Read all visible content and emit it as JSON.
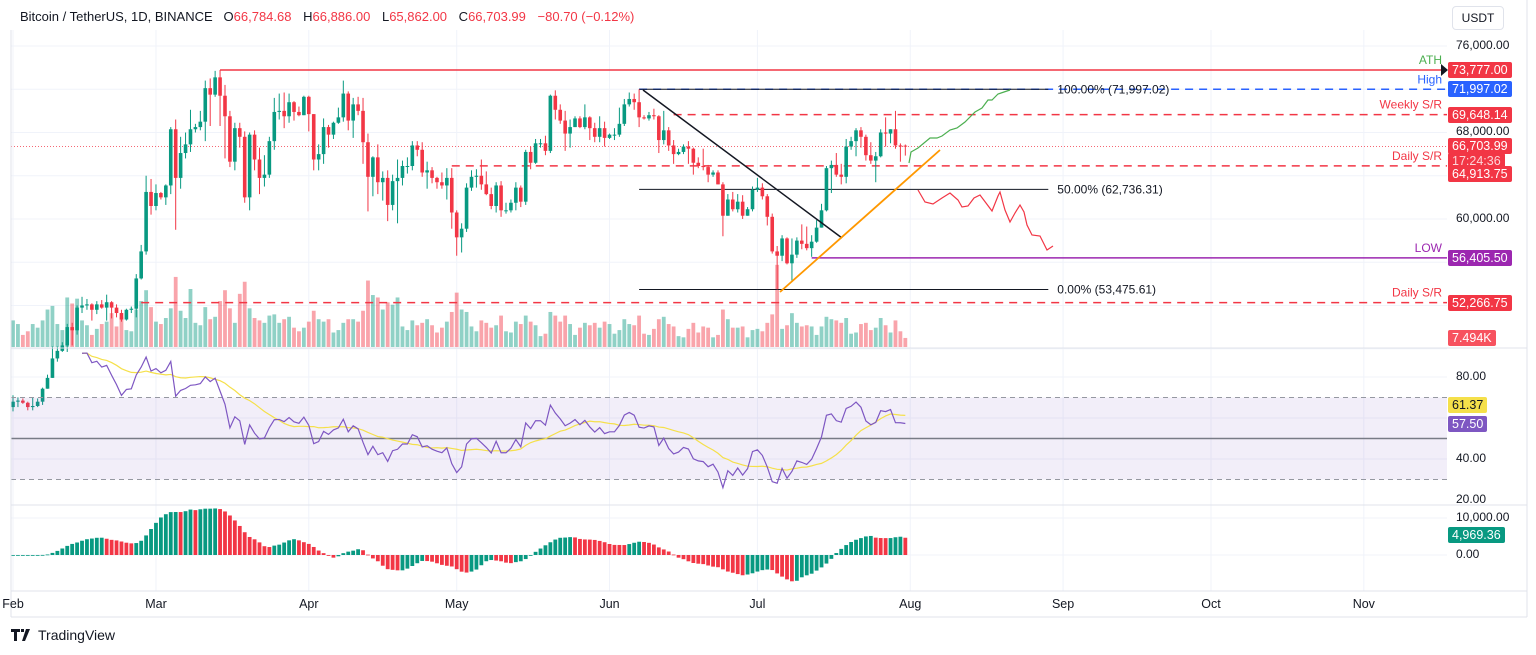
{
  "header": {
    "symbol": "Bitcoin / TetherUS, 1D, BINANCE",
    "o_label": "O",
    "o_value": "66,784.68",
    "h_label": "H",
    "h_value": "66,886.00",
    "l_label": "L",
    "l_value": "65,862.00",
    "c_label": "C",
    "c_value": "66,703.99",
    "change": "−80.70 (−0.12%)"
  },
  "currency_button": "USDT",
  "branding": "TradingView",
  "colors": {
    "up": "#089981",
    "down": "#f23645",
    "rsi": "#7e57c2",
    "rsi_ma": "#f5e04a",
    "fib": "#131722",
    "high": "#2962ff",
    "low": "#9c27b0",
    "ath_label": "#4caf50",
    "trend_down": "#131722",
    "trend_up": "#ff9800",
    "path_up": "#4caf50",
    "path_down": "#f23645"
  },
  "chart_data": {
    "type": "candlestick",
    "title": "Bitcoin / TetherUS, 1D, BINANCE",
    "x_ticks": [
      "Feb",
      "Mar",
      "Apr",
      "May",
      "Jun",
      "Jul",
      "Aug",
      "Sep",
      "Oct",
      "Nov"
    ],
    "y_ticks": [
      "76,000.00",
      "68,000.00",
      "60,000.00"
    ],
    "ylim": [
      44500,
      78000
    ],
    "grid": true,
    "start_date": "Feb 1",
    "ohlc": [
      [
        42600,
        43700,
        42200,
        43100
      ],
      [
        43100,
        43500,
        42600,
        43200
      ],
      [
        43200,
        43400,
        42900,
        43000
      ],
      [
        43000,
        43100,
        42300,
        42600
      ],
      [
        42600,
        43500,
        42300,
        42700
      ],
      [
        42700,
        43400,
        42600,
        43100
      ],
      [
        43100,
        44400,
        42800,
        44300
      ],
      [
        44300,
        45600,
        44300,
        45300
      ],
      [
        45300,
        48200,
        45300,
        47100
      ],
      [
        47100,
        48200,
        46800,
        47800
      ],
      [
        47800,
        48600,
        47700,
        48300
      ],
      [
        48300,
        50300,
        47700,
        50000
      ],
      [
        50000,
        50400,
        48300,
        49700
      ],
      [
        49700,
        52000,
        49300,
        51800
      ],
      [
        51800,
        52800,
        51300,
        52000
      ],
      [
        52000,
        52600,
        51600,
        52100
      ],
      [
        52100,
        52200,
        50600,
        51600
      ],
      [
        51600,
        52400,
        51200,
        52100
      ],
      [
        52100,
        52500,
        51700,
        51800
      ],
      [
        51800,
        53000,
        50600,
        52300
      ],
      [
        52300,
        52400,
        50800,
        51800
      ],
      [
        51800,
        52100,
        50900,
        51300
      ],
      [
        51300,
        51600,
        50500,
        50700
      ],
      [
        50700,
        51700,
        50600,
        51600
      ],
      [
        51600,
        51900,
        51300,
        51700
      ],
      [
        51700,
        54900,
        50900,
        54500
      ],
      [
        54500,
        57600,
        54400,
        57000
      ],
      [
        57000,
        64000,
        56700,
        62500
      ],
      [
        62500,
        63700,
        60400,
        61200
      ],
      [
        61200,
        63200,
        60800,
        62400
      ],
      [
        62400,
        62500,
        61800,
        62000
      ],
      [
        62000,
        63200,
        61300,
        63100
      ],
      [
        63100,
        68500,
        62300,
        68300
      ],
      [
        68300,
        69200,
        59000,
        63800
      ],
      [
        63800,
        67600,
        62800,
        66100
      ],
      [
        66100,
        68000,
        65600,
        66900
      ],
      [
        66900,
        70100,
        66200,
        68300
      ],
      [
        68300,
        68800,
        68000,
        68500
      ],
      [
        68500,
        70000,
        68200,
        69000
      ],
      [
        69000,
        72800,
        67200,
        72100
      ],
      [
        72100,
        73000,
        68600,
        71500
      ],
      [
        71500,
        73700,
        71300,
        73100
      ],
      [
        73100,
        73777,
        68600,
        71400
      ],
      [
        71400,
        72400,
        65600,
        69500
      ],
      [
        69500,
        70000,
        64800,
        65300
      ],
      [
        65300,
        68900,
        64500,
        68400
      ],
      [
        68400,
        68900,
        66600,
        67600
      ],
      [
        67600,
        68100,
        61500,
        62000
      ],
      [
        62000,
        68000,
        60800,
        67800
      ],
      [
        67800,
        68200,
        64500,
        65500
      ],
      [
        65500,
        66600,
        62300,
        63800
      ],
      [
        63800,
        65900,
        63000,
        64100
      ],
      [
        64100,
        67600,
        63800,
        67200
      ],
      [
        67200,
        71200,
        66400,
        69900
      ],
      [
        69900,
        71600,
        69200,
        70000
      ],
      [
        70000,
        71700,
        68400,
        69500
      ],
      [
        69500,
        71600,
        68900,
        70800
      ],
      [
        70800,
        70900,
        69100,
        69900
      ],
      [
        69900,
        70400,
        69500,
        69600
      ],
      [
        69600,
        71400,
        69600,
        71300
      ],
      [
        71300,
        71400,
        68100,
        69700
      ],
      [
        69700,
        69700,
        64500,
        65500
      ],
      [
        65500,
        66900,
        64500,
        66000
      ],
      [
        66000,
        69300,
        65100,
        68500
      ],
      [
        68500,
        68700,
        66600,
        67800
      ],
      [
        67800,
        69000,
        67400,
        68900
      ],
      [
        68900,
        70300,
        68800,
        69400
      ],
      [
        69400,
        72800,
        69000,
        71600
      ],
      [
        71600,
        71800,
        68200,
        69100
      ],
      [
        69100,
        71200,
        67500,
        70600
      ],
      [
        70600,
        71300,
        69600,
        70000
      ],
      [
        70000,
        71200,
        65100,
        67100
      ],
      [
        67100,
        67900,
        60700,
        63900
      ],
      [
        63900,
        65800,
        62100,
        65700
      ],
      [
        65700,
        66900,
        62300,
        63400
      ],
      [
        63400,
        64400,
        61700,
        63800
      ],
      [
        63800,
        64500,
        59800,
        61300
      ],
      [
        61300,
        64100,
        60800,
        63500
      ],
      [
        63500,
        65500,
        59600,
        63800
      ],
      [
        63800,
        65400,
        63100,
        64900
      ],
      [
        64900,
        65700,
        64200,
        64900
      ],
      [
        64900,
        67200,
        64500,
        66800
      ],
      [
        66800,
        67200,
        65800,
        66400
      ],
      [
        66400,
        67100,
        63900,
        64300
      ],
      [
        64300,
        65300,
        62800,
        64500
      ],
      [
        64500,
        64800,
        63300,
        63800
      ],
      [
        63800,
        63900,
        62800,
        63400
      ],
      [
        63400,
        64300,
        62800,
        63100
      ],
      [
        63100,
        64700,
        61800,
        63800
      ],
      [
        63800,
        64700,
        59100,
        60600
      ],
      [
        60600,
        60800,
        56600,
        58300
      ],
      [
        58300,
        59600,
        56900,
        59100
      ],
      [
        59100,
        63300,
        58800,
        62900
      ],
      [
        62900,
        64500,
        62600,
        63900
      ],
      [
        63900,
        64600,
        62900,
        64000
      ],
      [
        64000,
        65500,
        62700,
        63200
      ],
      [
        63200,
        64400,
        62200,
        62300
      ],
      [
        62300,
        62900,
        60900,
        61200
      ],
      [
        61200,
        63400,
        60600,
        63100
      ],
      [
        63100,
        63500,
        60200,
        60800
      ],
      [
        60800,
        61500,
        60500,
        60800
      ],
      [
        60800,
        61800,
        60600,
        61500
      ],
      [
        61500,
        63400,
        60800,
        62900
      ],
      [
        62900,
        63100,
        61100,
        61600
      ],
      [
        61600,
        66400,
        61300,
        66200
      ],
      [
        66200,
        66700,
        64600,
        65200
      ],
      [
        65200,
        67400,
        65100,
        67000
      ],
      [
        67000,
        67400,
        66600,
        67000
      ],
      [
        67000,
        67700,
        65900,
        66300
      ],
      [
        66300,
        71500,
        66100,
        71400
      ],
      [
        71400,
        71900,
        69200,
        70100
      ],
      [
        70100,
        70600,
        68800,
        69100
      ],
      [
        69100,
        70000,
        66300,
        67900
      ],
      [
        67900,
        69200,
        66600,
        68500
      ],
      [
        68500,
        69500,
        68500,
        69300
      ],
      [
        69300,
        69500,
        68400,
        68500
      ],
      [
        68500,
        70600,
        68300,
        69400
      ],
      [
        69400,
        69500,
        67300,
        68400
      ],
      [
        68400,
        68900,
        67100,
        67600
      ],
      [
        67600,
        69500,
        67100,
        68400
      ],
      [
        68400,
        69000,
        66700,
        67500
      ],
      [
        67500,
        67900,
        67400,
        67800
      ],
      [
        67800,
        68400,
        67300,
        67800
      ],
      [
        67800,
        70300,
        67600,
        68800
      ],
      [
        68800,
        71100,
        68600,
        70600
      ],
      [
        70600,
        71700,
        70400,
        71100
      ],
      [
        71100,
        71600,
        70100,
        70800
      ],
      [
        70800,
        71997,
        68500,
        69400
      ],
      [
        69400,
        69600,
        69200,
        69300
      ],
      [
        69300,
        69900,
        69100,
        69600
      ],
      [
        69600,
        70200,
        69200,
        69500
      ],
      [
        69500,
        69600,
        66100,
        67300
      ],
      [
        67300,
        70000,
        66900,
        68200
      ],
      [
        68200,
        68500,
        66300,
        66800
      ],
      [
        66800,
        67300,
        65100,
        66000
      ],
      [
        66000,
        66500,
        65900,
        66200
      ],
      [
        66200,
        66900,
        66000,
        66700
      ],
      [
        66700,
        67200,
        65100,
        66500
      ],
      [
        66500,
        66600,
        64100,
        65200
      ],
      [
        65200,
        65700,
        64700,
        64900
      ],
      [
        64900,
        66500,
        64500,
        64800
      ],
      [
        64800,
        65000,
        63400,
        64100
      ],
      [
        64100,
        64500,
        63900,
        64300
      ],
      [
        64300,
        64500,
        63200,
        63200
      ],
      [
        63200,
        63400,
        58400,
        60300
      ],
      [
        60300,
        62300,
        60300,
        61800
      ],
      [
        61800,
        62500,
        60700,
        60900
      ],
      [
        60900,
        62300,
        60600,
        61600
      ],
      [
        61600,
        62200,
        60000,
        60300
      ],
      [
        60300,
        61100,
        60300,
        60900
      ],
      [
        60900,
        63000,
        60700,
        62700
      ],
      [
        62700,
        63800,
        62500,
        62900
      ],
      [
        62900,
        63300,
        61800,
        62100
      ],
      [
        62100,
        62300,
        59400,
        60200
      ],
      [
        60200,
        60500,
        56800,
        57000
      ],
      [
        57000,
        57500,
        53476,
        56600
      ],
      [
        56600,
        58500,
        56100,
        58200
      ],
      [
        58200,
        58300,
        55800,
        55900
      ],
      [
        55900,
        58200,
        54300,
        56700
      ],
      [
        56700,
        58300,
        56400,
        58000
      ],
      [
        58000,
        59500,
        57200,
        57700
      ],
      [
        57700,
        59300,
        57100,
        57300
      ],
      [
        57300,
        58500,
        56500,
        57900
      ],
      [
        57900,
        59900,
        57800,
        59200
      ],
      [
        59200,
        61400,
        59200,
        60800
      ],
      [
        60800,
        64900,
        60700,
        64700
      ],
      [
        64700,
        65400,
        62400,
        65000
      ],
      [
        65000,
        66100,
        63900,
        64100
      ],
      [
        64100,
        65100,
        63200,
        63900
      ],
      [
        63900,
        67400,
        63300,
        66700
      ],
      [
        66700,
        67600,
        66400,
        67200
      ],
      [
        67200,
        68400,
        65800,
        68200
      ],
      [
        68200,
        68500,
        66600,
        67600
      ],
      [
        67600,
        67800,
        65400,
        65900
      ],
      [
        65900,
        67100,
        65100,
        65400
      ],
      [
        65400,
        66200,
        63400,
        65800
      ],
      [
        65800,
        68300,
        65700,
        68000
      ],
      [
        68000,
        69400,
        66700,
        67900
      ],
      [
        67900,
        68300,
        67000,
        68300
      ],
      [
        68300,
        70000,
        66500,
        66800
      ],
      [
        66800,
        66990,
        65300,
        66785
      ],
      [
        66784.68,
        66886,
        65862,
        66703.99
      ]
    ],
    "volume_unit": "K",
    "volume": [
      22,
      19,
      10,
      13,
      19,
      16,
      22,
      31,
      34,
      19,
      14,
      41,
      36,
      40,
      22,
      18,
      10,
      15,
      19,
      21,
      28,
      17,
      25,
      14,
      13,
      31,
      38,
      47,
      33,
      21,
      19,
      24,
      32,
      58,
      30,
      24,
      48,
      20,
      18,
      33,
      23,
      25,
      38,
      47,
      32,
      20,
      44,
      54,
      32,
      24,
      22,
      20,
      26,
      27,
      20,
      23,
      25,
      16,
      13,
      16,
      21,
      30,
      23,
      21,
      23,
      12,
      14,
      20,
      23,
      23,
      21,
      30,
      55,
      43,
      41,
      31,
      37,
      35,
      41,
      17,
      14,
      22,
      18,
      20,
      23,
      18,
      12,
      16,
      21,
      29,
      45,
      31,
      29,
      17,
      13,
      22,
      20,
      16,
      18,
      26,
      13,
      12,
      21,
      19,
      26,
      21,
      18,
      9,
      11,
      29,
      26,
      21,
      26,
      19,
      10,
      16,
      20,
      18,
      20,
      16,
      21,
      19,
      11,
      14,
      23,
      19,
      18,
      26,
      11,
      10,
      15,
      23,
      25,
      19,
      17,
      9,
      8,
      15,
      20,
      12,
      17,
      16,
      8,
      10,
      31,
      23,
      16,
      16,
      17,
      8,
      14,
      15,
      13,
      20,
      27,
      68,
      15,
      18,
      28,
      20,
      17,
      18,
      17,
      10,
      17,
      25,
      23,
      22,
      20,
      24,
      11,
      12,
      19,
      20,
      14,
      16,
      24,
      18,
      12,
      22,
      13,
      7.494
    ],
    "volume_last": "7.494K",
    "last_price": {
      "value": 66703.99,
      "text": "66,703.99",
      "countdown": "17:24:36"
    },
    "price_lines": [
      {
        "label": "ATH",
        "value": 73777.0,
        "text": "73,777.00",
        "color": "#f23645",
        "label_color": "#4caf50",
        "style": "solid",
        "from": "Mar 14"
      },
      {
        "label": "High",
        "value": 71997.02,
        "text": "71,997.02",
        "color": "#2962ff",
        "label_color": "#2962ff",
        "style": "dashed",
        "from": "Jun 7"
      },
      {
        "label": "Weekly S/R",
        "value": 69648.14,
        "text": "69,648.14",
        "color": "#f23645",
        "label_color": "#f23645",
        "style": "dashed",
        "from": "Jun 14"
      },
      {
        "label": "Daily S/R",
        "value": 64913.75,
        "text": "64,913.75",
        "color": "#f23645",
        "label_color": "#f23645",
        "style": "dashed",
        "from": "Apr 30"
      },
      {
        "label": "LOW",
        "value": 56405.5,
        "text": "56,405.50",
        "color": "#9c27b0",
        "label_color": "#9c27b0",
        "style": "solid",
        "from": "Jul 12"
      },
      {
        "label": "Daily S/R",
        "value": 52266.75,
        "text": "52,266.75",
        "color": "#f23645",
        "label_color": "#f23645",
        "style": "dashed",
        "from": "Feb 27"
      }
    ],
    "fib_levels": [
      {
        "label": "100.00% (71,997.02)",
        "value": 71997.02,
        "from": "Jun 7",
        "to": "Aug 29"
      },
      {
        "label": "50.00% (62,736.31)",
        "value": 62736.31,
        "from": "Jun 7",
        "to": "Aug 29"
      },
      {
        "label": "0.00% (53,475.61)",
        "value": 53475.61,
        "from": "Jun 7",
        "to": "Aug 29"
      }
    ],
    "rsi": {
      "length": 14,
      "ma_length": 14,
      "upper": 70,
      "middle": 50,
      "lower": 30,
      "ylim": [
        15,
        92
      ],
      "y_ticks": [
        "80.00",
        "40.00",
        "20.00"
      ],
      "last_rsi": "57.50",
      "last_ma": "61.37"
    },
    "oscillator": {
      "ylim": [
        -7000,
        11000
      ],
      "y_ticks": [
        "10,000.00",
        "0.00"
      ],
      "last": "4,969.36"
    }
  }
}
